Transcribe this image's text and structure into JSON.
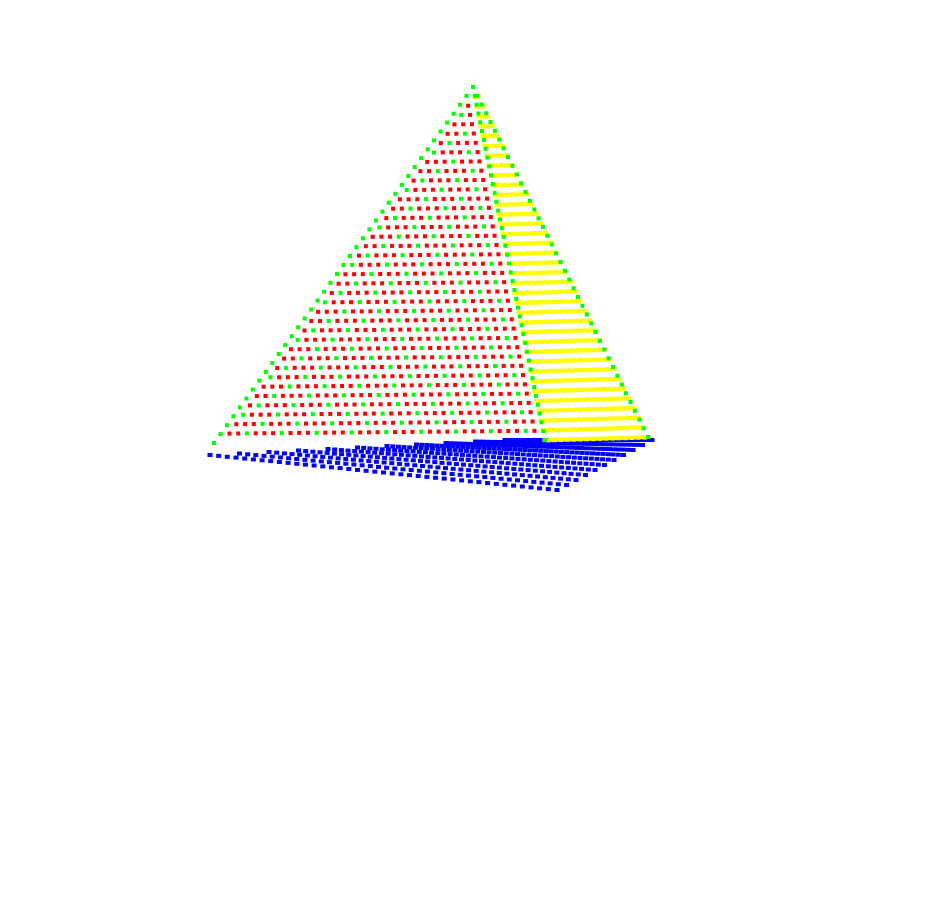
{
  "scene": {
    "description_type": "3d-point-cloud-pyramid",
    "background_color": "#ffffff",
    "colors": {
      "edge_points": "#00ff00",
      "front_face": "#ff0000",
      "right_face": "#ffff00",
      "base_grid": "#0000ff"
    }
  }
}
